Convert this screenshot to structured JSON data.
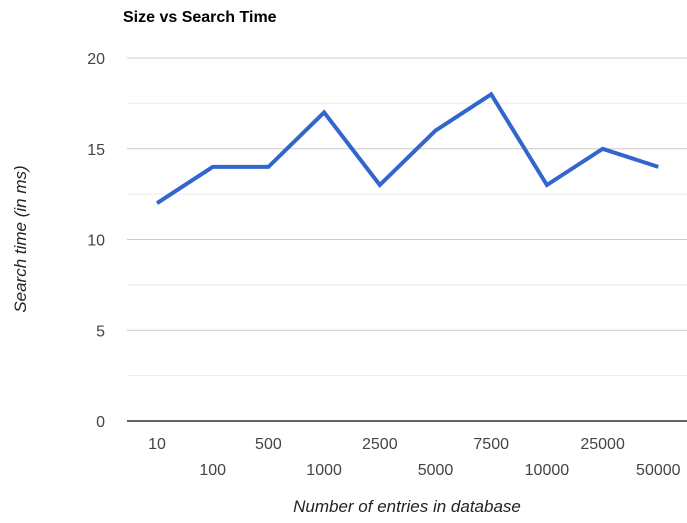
{
  "chart_data": {
    "type": "line",
    "title": "Size vs Search Time",
    "xlabel": "Number of entries in database",
    "ylabel": "Search time (in ms)",
    "categories": [
      "10",
      "100",
      "500",
      "1000",
      "2500",
      "5000",
      "7500",
      "10000",
      "25000",
      "50000"
    ],
    "series": [
      {
        "values": [
          12,
          14,
          14,
          17,
          13,
          16,
          18,
          13,
          15,
          14
        ]
      }
    ],
    "ylim": [
      0,
      20
    ],
    "yticks": [
      0,
      5,
      10,
      15,
      20
    ],
    "grid": true,
    "legend": "none",
    "colors": {
      "line": "#3366cc",
      "gridline": "#cccccc",
      "minor_gridline": "#ebebeb",
      "baseline": "#333333"
    }
  }
}
